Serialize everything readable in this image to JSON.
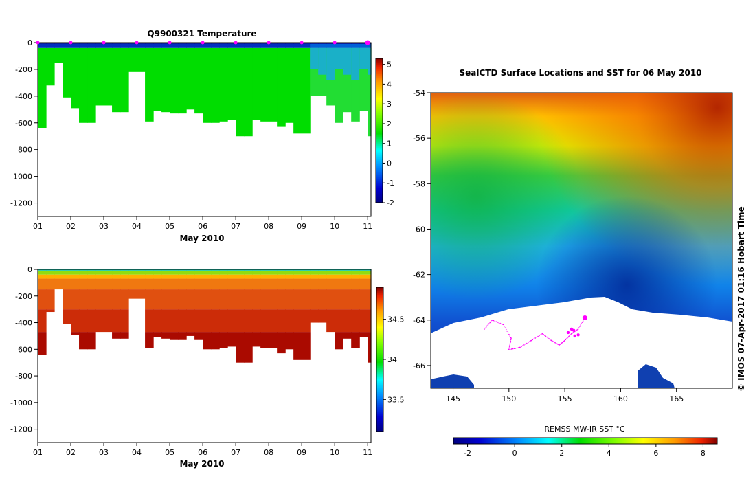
{
  "chart_data": [
    {
      "type": "heatmap",
      "title": "Q9900321  Temperature",
      "xlabel": "May 2010",
      "ylabel": "",
      "ylim": [
        -1300,
        0
      ],
      "xlim": [
        1,
        11.1
      ],
      "x_ticks": [
        "01",
        "02",
        "03",
        "04",
        "05",
        "06",
        "07",
        "08",
        "09",
        "10",
        "11"
      ],
      "y_ticks": [
        0,
        -200,
        -400,
        -600,
        -800,
        -1000,
        -1200
      ],
      "colorbar_ticks": [
        "5",
        "4",
        "3",
        "2",
        "1",
        "0",
        "-1",
        "-2"
      ],
      "colorbar_range": [
        -2,
        5.3
      ],
      "profile_times": [
        1.0,
        1.25,
        1.5,
        1.75,
        2.0,
        2.25,
        2.5,
        2.75,
        3.0,
        3.25,
        3.5,
        3.75,
        4.0,
        4.25,
        4.5,
        4.75,
        5.0,
        5.25,
        5.5,
        5.75,
        6.0,
        6.25,
        6.5,
        6.75,
        7.0,
        7.25,
        7.5,
        7.75,
        8.0,
        8.25,
        8.5,
        8.75,
        9.0,
        9.25,
        9.5,
        9.75,
        10.0,
        10.25,
        10.5,
        10.75,
        11.0
      ],
      "profile_max_depths": [
        -640,
        -320,
        -150,
        -410,
        -490,
        -600,
        -600,
        -470,
        -470,
        -520,
        -520,
        -220,
        -220,
        -590,
        -510,
        -520,
        -530,
        -530,
        -500,
        -530,
        -600,
        -600,
        -590,
        -580,
        -700,
        -700,
        -580,
        -590,
        -590,
        -630,
        -600,
        -680,
        -680,
        -400,
        -400,
        -470,
        -600,
        -520,
        -590,
        -510,
        -700
      ],
      "values_summary": {
        "surface_layer_c": -1.5,
        "deep_layer_c": 1.6,
        "late_period_near_surface_c": 0.3
      },
      "marker_color": "#ff00ff"
    },
    {
      "type": "heatmap",
      "title": "",
      "xlabel": "May 2010",
      "ylabel": "",
      "ylim": [
        -1300,
        0
      ],
      "xlim": [
        1,
        11.1
      ],
      "x_ticks": [
        "01",
        "02",
        "03",
        "04",
        "05",
        "06",
        "07",
        "08",
        "09",
        "10",
        "11"
      ],
      "y_ticks": [
        0,
        -200,
        -400,
        -600,
        -800,
        -1000,
        -1200
      ],
      "colorbar_ticks": [
        "34.5",
        "34",
        "33.5"
      ],
      "colorbar_range": [
        33.1,
        34.9
      ],
      "profile_times": [
        1.0,
        1.25,
        1.5,
        1.75,
        2.0,
        2.25,
        2.5,
        2.75,
        3.0,
        3.25,
        3.5,
        3.75,
        4.0,
        4.25,
        4.5,
        4.75,
        5.0,
        5.25,
        5.5,
        5.75,
        6.0,
        6.25,
        6.5,
        6.75,
        7.0,
        7.25,
        7.5,
        7.75,
        8.0,
        8.25,
        8.5,
        8.75,
        9.0,
        9.25,
        9.5,
        9.75,
        10.0,
        10.25,
        10.5,
        10.75,
        11.0
      ],
      "profile_max_depths": [
        -640,
        -320,
        -150,
        -410,
        -490,
        -600,
        -600,
        -470,
        -470,
        -520,
        -520,
        -220,
        -220,
        -590,
        -510,
        -520,
        -530,
        -530,
        -500,
        -530,
        -600,
        -600,
        -590,
        -580,
        -700,
        -700,
        -580,
        -590,
        -590,
        -630,
        -600,
        -680,
        -680,
        -400,
        -400,
        -470,
        -600,
        -520,
        -590,
        -510,
        -700
      ],
      "values_summary": {
        "surface_psu": 33.9,
        "deep_psu": 34.75
      }
    },
    {
      "type": "heatmap",
      "title": "SealCTD Surface Locations and SST for 06 May 2010",
      "xlabel": "",
      "ylabel": "",
      "xlim": [
        143,
        170
      ],
      "ylim": [
        -67,
        -54
      ],
      "x_ticks": [
        "145",
        "150",
        "155",
        "160",
        "165"
      ],
      "y_ticks": [
        "-54",
        "-56",
        "-58",
        "-60",
        "-62",
        "-64",
        "-66"
      ],
      "colorbar_label": "REMSS MW-IR SST °C",
      "colorbar_ticks": [
        "-2",
        "0",
        "2",
        "4",
        "6",
        "8"
      ],
      "colorbar_range": [
        -2.6,
        8.6
      ],
      "seal_locations_current": [
        [
          156.8,
          -63.9
        ],
        [
          155.3,
          -64.55
        ],
        [
          155.6,
          -64.4
        ],
        [
          155.9,
          -64.7
        ],
        [
          156.2,
          -64.65
        ],
        [
          155.8,
          -64.45
        ]
      ],
      "marker_color": "#ff00ff",
      "side_text": "©  IMOS 07-Apr-2017 01:16 Hobart Time"
    }
  ]
}
